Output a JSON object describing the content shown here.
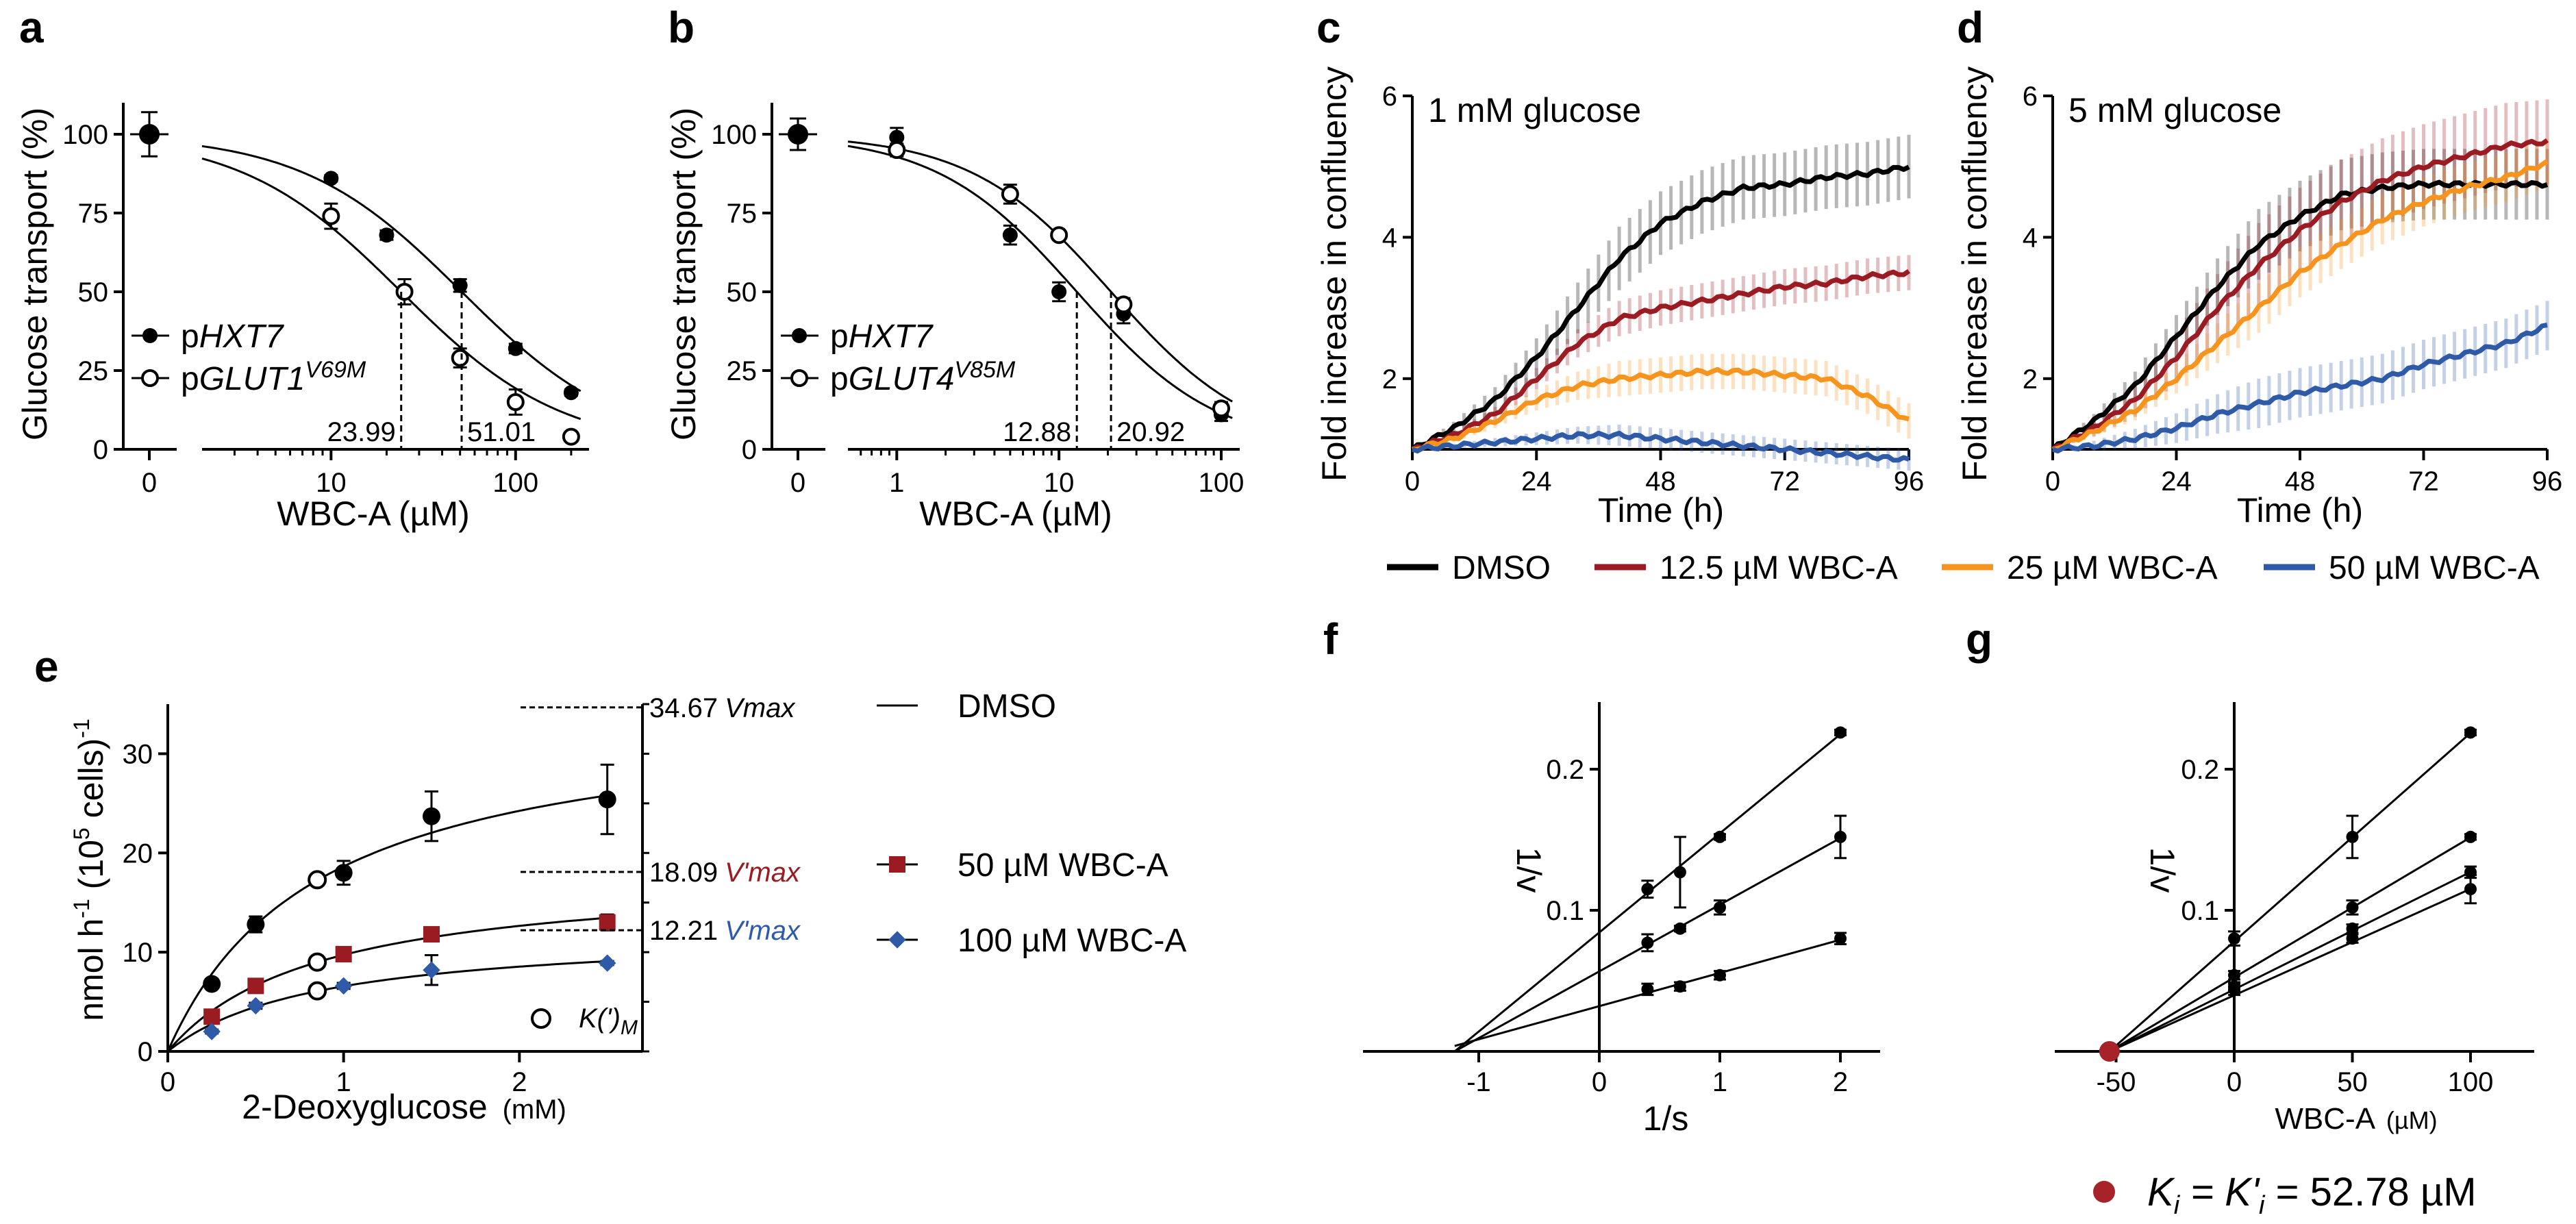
{
  "colors": {
    "dmso": "#000000",
    "wbc12": "#9b1b23",
    "wbc25": "#f7941d",
    "wbc50": "#2e5aa8",
    "ki_dot": "#a8222a",
    "vmax_red": "#9b1b23",
    "vmax_blue": "#2e5aa8"
  },
  "chart_data": [
    {
      "panel": "a",
      "type": "scatter",
      "xlabel": "WBC-A (µM)",
      "ylabel": "Glucose transport (%)",
      "xscale": "log",
      "xlim": [
        2,
        250
      ],
      "ylim": [
        0,
        110
      ],
      "xticks": [
        "0",
        "10",
        "100"
      ],
      "yticks": [
        "0",
        "25",
        "50",
        "75",
        "100"
      ],
      "control": {
        "x_label": "0",
        "y": 100,
        "err": 7
      },
      "series": [
        {
          "name": "pHXT7",
          "name_plain": "p",
          "name_ital": "HXT7",
          "marker": "filled",
          "x": [
            10,
            20,
            50,
            100,
            200
          ],
          "y": [
            86,
            68,
            52,
            32,
            18
          ],
          "err": [
            1,
            1.5,
            2,
            1.5,
            1
          ],
          "ic50": 51.01
        },
        {
          "name": "pGLUT1V69M",
          "name_plain": "p",
          "name_ital": "GLUT1",
          "name_sup": "V69M",
          "marker": "open",
          "x": [
            10,
            25,
            50,
            100,
            200
          ],
          "y": [
            74,
            50,
            29,
            15,
            4
          ],
          "err": [
            4,
            4,
            3,
            4,
            1
          ],
          "ic50": 23.99
        }
      ],
      "ic50_labels": [
        "23.99",
        "51.01"
      ]
    },
    {
      "panel": "b",
      "type": "scatter",
      "xlabel": "WBC-A (µM)",
      "ylabel": "Glucose transport (%)",
      "xscale": "log",
      "xlim": [
        0.5,
        130
      ],
      "ylim": [
        0,
        110
      ],
      "xticks": [
        "0",
        "1",
        "10",
        "100"
      ],
      "yticks": [
        "0",
        "25",
        "50",
        "75",
        "100"
      ],
      "control": {
        "x_label": "0",
        "y": 100,
        "err": 5
      },
      "series": [
        {
          "name": "pHXT7",
          "name_plain": "p",
          "name_ital": "HXT7",
          "marker": "filled",
          "x": [
            1,
            5,
            10,
            25,
            100
          ],
          "y": [
            99,
            68,
            50,
            43,
            11
          ],
          "err": [
            3,
            3,
            3,
            3,
            2
          ],
          "ic50": 12.88
        },
        {
          "name": "pGLUT4V85M",
          "name_plain": "p",
          "name_ital": "GLUT4",
          "name_sup": "V85M",
          "marker": "open",
          "x": [
            1,
            5,
            10,
            25,
            100
          ],
          "y": [
            95,
            81,
            68,
            46,
            13
          ],
          "err": [
            2,
            3,
            1,
            2,
            2
          ],
          "ic50": 20.92
        }
      ],
      "ic50_labels": [
        "12.88",
        "20.92"
      ]
    },
    {
      "panel": "c",
      "type": "line",
      "title": "1 mM glucose",
      "xlabel": "Time (h)",
      "ylabel": "Fold increase in confluency",
      "xlim": [
        0,
        96
      ],
      "ylim": [
        1,
        6
      ],
      "xticks": [
        "0",
        "24",
        "48",
        "72",
        "96"
      ],
      "yticks": [
        "2",
        "4",
        "6"
      ],
      "x": [
        0,
        8,
        16,
        24,
        32,
        40,
        48,
        56,
        64,
        72,
        80,
        88,
        96
      ],
      "series": [
        {
          "name": "DMSO",
          "y": [
            1.0,
            1.3,
            1.7,
            2.3,
            3.0,
            3.7,
            4.2,
            4.5,
            4.7,
            4.75,
            4.85,
            4.9,
            5.0
          ],
          "err": 0.45
        },
        {
          "name": "12.5 µM WBC-A",
          "y": [
            1.0,
            1.2,
            1.5,
            2.0,
            2.5,
            2.85,
            3.0,
            3.1,
            3.2,
            3.3,
            3.35,
            3.45,
            3.5
          ],
          "err": 0.25
        },
        {
          "name": "25 µM WBC-A",
          "y": [
            1.0,
            1.15,
            1.4,
            1.7,
            1.9,
            2.0,
            2.05,
            2.1,
            2.1,
            2.05,
            2.0,
            1.75,
            1.4
          ],
          "err": 0.25
        },
        {
          "name": "50 µM WBC-A",
          "y": [
            1.0,
            1.05,
            1.1,
            1.15,
            1.2,
            1.2,
            1.15,
            1.1,
            1.05,
            1.0,
            0.95,
            0.9,
            0.85
          ],
          "err": 0.15
        }
      ]
    },
    {
      "panel": "d",
      "type": "line",
      "title": "5 mM glucose",
      "xlabel": "Time (h)",
      "ylabel": "Fold increase in confluency",
      "xlim": [
        0,
        96
      ],
      "ylim": [
        1,
        6
      ],
      "xticks": [
        "0",
        "24",
        "48",
        "72",
        "96"
      ],
      "yticks": [
        "2",
        "4",
        "6"
      ],
      "x": [
        0,
        8,
        16,
        24,
        32,
        40,
        48,
        56,
        64,
        72,
        80,
        88,
        96
      ],
      "series": [
        {
          "name": "DMSO",
          "y": [
            1.0,
            1.4,
            1.9,
            2.6,
            3.3,
            3.9,
            4.3,
            4.6,
            4.7,
            4.75,
            4.75,
            4.75,
            4.75
          ],
          "err": 0.5
        },
        {
          "name": "12.5 µM WBC-A",
          "y": [
            1.0,
            1.3,
            1.7,
            2.3,
            3.0,
            3.6,
            4.1,
            4.5,
            4.8,
            5.0,
            5.15,
            5.3,
            5.35
          ],
          "err": 0.6
        },
        {
          "name": "25 µM WBC-A",
          "y": [
            1.0,
            1.25,
            1.55,
            2.0,
            2.5,
            3.0,
            3.5,
            3.9,
            4.25,
            4.5,
            4.7,
            4.85,
            5.05
          ],
          "err": 0.35
        },
        {
          "name": "50 µM WBC-A",
          "y": [
            1.0,
            1.05,
            1.15,
            1.3,
            1.5,
            1.65,
            1.8,
            1.9,
            2.0,
            2.2,
            2.35,
            2.5,
            2.75
          ],
          "err": 0.35
        }
      ],
      "legend": [
        "DMSO",
        "12.5 µM WBC-A",
        "25 µM WBC-A",
        "50 µM WBC-A"
      ]
    },
    {
      "panel": "e",
      "type": "scatter",
      "xlabel": "2-Deoxyglucose",
      "xlabel_unit": "(mM)",
      "ylabel_parts": [
        "nmol h",
        "-1",
        " (10",
        "5",
        " cells)",
        "-1"
      ],
      "xlim": [
        0,
        2.7
      ],
      "ylim": [
        0,
        35
      ],
      "xticks": [
        "0",
        "1",
        "2"
      ],
      "yticks": [
        "0",
        "10",
        "20",
        "30"
      ],
      "series": [
        {
          "name": "DMSO",
          "marker": "filled circle",
          "x": [
            0.25,
            0.5,
            0.85,
            1.0,
            1.5,
            2.5
          ],
          "y": [
            6.8,
            12.8,
            17.3,
            18.0,
            23.7,
            25.4
          ],
          "err": [
            0.3,
            0.8,
            0.5,
            1.2,
            2.5,
            3.5
          ],
          "vmax": 34.67,
          "km": 0.86
        },
        {
          "name": "50 µM WBC-A",
          "marker": "red square",
          "x": [
            0.25,
            0.5,
            1.0,
            1.5,
            2.5
          ],
          "y": [
            3.5,
            6.6,
            9.8,
            11.8,
            13.0
          ],
          "err": [
            0.2,
            0.3,
            0.3,
            0.5,
            0.8
          ],
          "vmax": 18.09,
          "km": 0.86
        },
        {
          "name": "100 µM WBC-A",
          "marker": "blue diamond",
          "x": [
            0.25,
            0.5,
            1.0,
            1.5,
            2.5
          ],
          "y": [
            2.0,
            4.6,
            6.6,
            8.2,
            8.9
          ],
          "err": [
            0.2,
            0.3,
            0.3,
            1.5,
            0.2
          ],
          "vmax": 12.21,
          "km": 0.86
        }
      ],
      "km_points": [
        {
          "x": 0.85,
          "y": 17.3
        },
        {
          "x": 0.85,
          "y": 9.0
        },
        {
          "x": 0.85,
          "y": 6.1
        }
      ],
      "vmax_labels": [
        {
          "value": "34.67",
          "label": "Vmax"
        },
        {
          "value": "18.09",
          "label": "V'max"
        },
        {
          "value": "12.21",
          "label": "V'max"
        }
      ],
      "km_legend": {
        "main": "K(')",
        "sub": "M"
      }
    },
    {
      "panel": "f",
      "type": "line",
      "xlabel": "1/s",
      "ylabel": "1/v",
      "xlim": [
        -1.7,
        2.4
      ],
      "ylim": [
        -0.01,
        0.245
      ],
      "xticks": [
        "-1",
        "0",
        "1",
        "2"
      ],
      "yticks": [
        "0.1",
        "0.2"
      ],
      "series": [
        {
          "x": [
            0.4,
            0.67,
            1.0,
            2.0
          ],
          "y": [
            0.115,
            0.127,
            0.152,
            0.226
          ],
          "err": [
            0.006,
            0.025,
            0.002,
            0.002
          ]
        },
        {
          "x": [
            0.4,
            0.67,
            1.0,
            2.0
          ],
          "y": [
            0.077,
            0.087,
            0.102,
            0.152
          ],
          "err": [
            0.006,
            0.002,
            0.005,
            0.015
          ]
        },
        {
          "x": [
            0.4,
            0.67,
            1.0,
            2.0
          ],
          "y": [
            0.044,
            0.046,
            0.054,
            0.08
          ],
          "err": [
            0.004,
            0.003,
            0.003,
            0.004
          ]
        }
      ],
      "intersect_x": -1.2
    },
    {
      "panel": "g",
      "type": "line",
      "xlabel": "WBC-A",
      "xlabel_unit": "(µM)",
      "ylabel": "1/v",
      "xlim": [
        -70,
        125
      ],
      "ylim": [
        -0.01,
        0.245
      ],
      "xticks": [
        "-50",
        "0",
        "50",
        "100"
      ],
      "yticks": [
        "0.1",
        "0.2"
      ],
      "series": [
        {
          "x": [
            0,
            50,
            100
          ],
          "y": [
            0.08,
            0.152,
            0.226
          ],
          "err": [
            0.005,
            0.015,
            0.002
          ]
        },
        {
          "x": [
            0,
            50,
            100
          ],
          "y": [
            0.054,
            0.102,
            0.152
          ],
          "err": [
            0.003,
            0.005,
            0.002
          ]
        },
        {
          "x": [
            0,
            50,
            100
          ],
          "y": [
            0.046,
            0.087,
            0.127
          ],
          "err": [
            0.003,
            0.003,
            0.004
          ]
        },
        {
          "x": [
            0,
            50,
            100
          ],
          "y": [
            0.044,
            0.08,
            0.115
          ],
          "err": [
            0.004,
            0.003,
            0.01
          ]
        }
      ],
      "ki_point": {
        "x": -52.78,
        "y": 0
      },
      "ki_text": {
        "k": "K",
        "i": "i",
        "mid": " = K",
        "prime_i": "'",
        "i2": "i",
        "rest": " = 52.78 µM"
      }
    }
  ]
}
